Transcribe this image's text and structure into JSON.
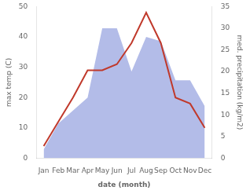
{
  "chart_data": {
    "type": "line",
    "categories": [
      "Jan",
      "Feb",
      "Mar",
      "Apr",
      "May",
      "Jun",
      "Jul",
      "Aug",
      "Sep",
      "Oct",
      "Nov",
      "Dec"
    ],
    "series": [
      {
        "type": "area",
        "axis": "y2",
        "color": "#b3bce8",
        "values": [
          2,
          8,
          11,
          14,
          30,
          30,
          20,
          28,
          27,
          18,
          18,
          12
        ]
      },
      {
        "type": "line",
        "color": "#c0392b",
        "values": [
          4,
          12,
          20,
          29,
          29,
          31,
          38,
          48,
          38,
          20,
          18,
          10
        ]
      }
    ],
    "xlabel": "date (month)",
    "ylabel": "max temp (C)",
    "y2label": "med. precipitation (kg/m2)",
    "ylim": [
      0,
      50
    ],
    "yticks": [
      0,
      10,
      20,
      30,
      40,
      50
    ],
    "y2lim": [
      0,
      35
    ],
    "y2ticks": [
      0,
      5,
      10,
      15,
      20,
      25,
      30,
      35
    ],
    "grid": false
  }
}
